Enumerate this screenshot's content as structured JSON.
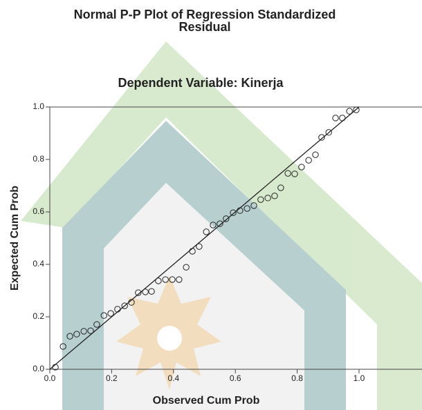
{
  "chart_data": {
    "type": "scatter",
    "title": [
      "Normal P-P Plot of Regression Standardized",
      "Residual"
    ],
    "subtitle": "Dependent Variable: Kinerja",
    "xlabel": "Observed Cum Prob",
    "ylabel": "Expected Cum Prob",
    "xlim": [
      0,
      1.2
    ],
    "ylim": [
      0,
      1
    ],
    "xticks": [
      {
        "value": 0,
        "label": "0.0"
      },
      {
        "value": 0.2,
        "label": "0.2"
      },
      {
        "value": 0.4,
        "label": "0.4"
      },
      {
        "value": 0.6,
        "label": "0.6"
      },
      {
        "value": 0.8,
        "label": "0.8"
      },
      {
        "value": 1,
        "label": "1.0"
      }
    ],
    "yticks": [
      {
        "value": 0,
        "label": "0.0"
      },
      {
        "value": 0.2,
        "label": "0.2"
      },
      {
        "value": 0.4,
        "label": "0.4"
      },
      {
        "value": 0.6,
        "label": "0.6"
      },
      {
        "value": 0.8,
        "label": "0.8"
      },
      {
        "value": 1,
        "label": "1.0"
      }
    ],
    "color": "#222222",
    "x": [
      0.018,
      0.043,
      0.065,
      0.087,
      0.11,
      0.132,
      0.152,
      0.175,
      0.197,
      0.219,
      0.242,
      0.264,
      0.286,
      0.309,
      0.329,
      0.351,
      0.374,
      0.396,
      0.418,
      0.441,
      0.461,
      0.483,
      0.506,
      0.528,
      0.55,
      0.57,
      0.593,
      0.615,
      0.638,
      0.66,
      0.682,
      0.705,
      0.727,
      0.747,
      0.77,
      0.792,
      0.814,
      0.837,
      0.859,
      0.879,
      0.902,
      0.924,
      0.946,
      0.969,
      0.991
    ],
    "values": [
      0.008,
      0.087,
      0.126,
      0.134,
      0.145,
      0.147,
      0.171,
      0.205,
      0.213,
      0.229,
      0.242,
      0.255,
      0.292,
      0.295,
      0.297,
      0.337,
      0.342,
      0.342,
      0.342,
      0.389,
      0.45,
      0.468,
      0.524,
      0.55,
      0.555,
      0.574,
      0.597,
      0.605,
      0.613,
      0.624,
      0.647,
      0.653,
      0.661,
      0.692,
      0.747,
      0.745,
      0.771,
      0.797,
      0.818,
      0.884,
      0.903,
      0.958,
      0.958,
      0.984,
      0.989
    ]
  }
}
